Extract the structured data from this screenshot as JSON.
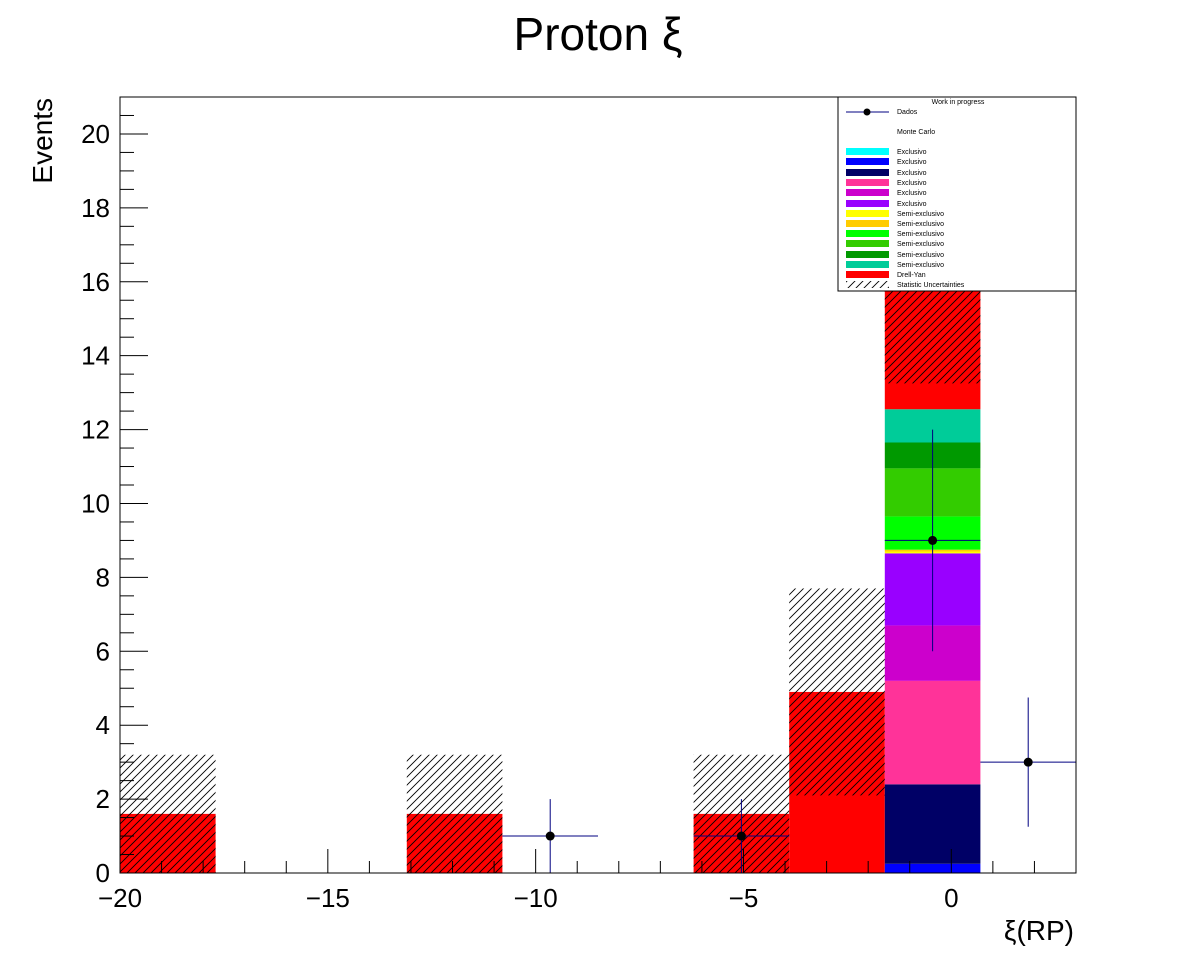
{
  "chart_data": {
    "type": "bar",
    "title": "Proton ξ",
    "xlabel": "ξ(RP)",
    "ylabel": "Events",
    "xlim": [
      -20,
      3
    ],
    "ylim": [
      0,
      21
    ],
    "x_ticks": [
      -20,
      -15,
      -10,
      -5,
      0
    ],
    "x_tick_labels": [
      "−20",
      "−15",
      "−10",
      "−5",
      "0"
    ],
    "y_ticks": [
      0,
      2,
      4,
      6,
      8,
      10,
      12,
      14,
      16,
      18,
      20
    ],
    "y_tick_labels": [
      "0",
      "2",
      "4",
      "6",
      "8",
      "10",
      "12",
      "14",
      "16",
      "18",
      "20"
    ],
    "stack_bins": [
      {
        "x0": -20,
        "x1": -17.7,
        "segments": [
          {
            "name": "Drell-Yan",
            "color": "#ff0000",
            "value": 1.6
          }
        ],
        "stat_uncertainty": 1.6
      },
      {
        "x0": -13.1,
        "x1": -10.8,
        "segments": [
          {
            "name": "Drell-Yan",
            "color": "#ff0000",
            "value": 1.6
          }
        ],
        "stat_uncertainty": 1.6
      },
      {
        "x0": -6.2,
        "x1": -3.9,
        "segments": [
          {
            "name": "Drell-Yan",
            "color": "#ff0000",
            "value": 1.6
          }
        ],
        "stat_uncertainty": 1.6
      },
      {
        "x0": -3.9,
        "x1": -1.6,
        "segments": [
          {
            "name": "Drell-Yan",
            "color": "#ff0000",
            "value": 4.9
          }
        ],
        "stat_uncertainty": 2.8
      },
      {
        "x0": -1.6,
        "x1": 0.7,
        "segments": [
          {
            "name": "Exclusivo",
            "color": "#0000ff",
            "value": 0.25
          },
          {
            "name": "Exclusivo",
            "color": "#000066",
            "value": 2.15
          },
          {
            "name": "Exclusivo",
            "color": "#ff3399",
            "value": 2.8
          },
          {
            "name": "Exclusivo",
            "color": "#cc00cc",
            "value": 1.5
          },
          {
            "name": "Exclusivo",
            "color": "#9900ff",
            "value": 1.95
          },
          {
            "name": "Semi-exclusivo",
            "color": "#ffff00",
            "value": 0.05
          },
          {
            "name": "Semi-exclusivo",
            "color": "#ffcc00",
            "value": 0.05
          },
          {
            "name": "Semi-exclusivo",
            "color": "#00ff00",
            "value": 0.9
          },
          {
            "name": "Semi-exclusivo",
            "color": "#33cc00",
            "value": 1.3
          },
          {
            "name": "Semi-exclusivo",
            "color": "#009900",
            "value": 0.7
          },
          {
            "name": "Semi-exclusivo",
            "color": "#00cc99",
            "value": 0.9
          },
          {
            "name": "Drell-Yan",
            "color": "#ff0000",
            "value": 3.2
          }
        ],
        "stat_uncertainty": 2.5
      }
    ],
    "data_points": [
      {
        "x": -9.65,
        "y": 1,
        "xerr": 1.15,
        "yerr": [
          1,
          1
        ]
      },
      {
        "x": -5.05,
        "y": 1,
        "xerr": 1.15,
        "yerr": [
          1,
          1
        ]
      },
      {
        "x": -0.45,
        "y": 9,
        "xerr": 1.15,
        "yerr": [
          3,
          3
        ]
      },
      {
        "x": 1.85,
        "y": 3,
        "xerr": 1.15,
        "yerr": [
          1.75,
          1.75
        ]
      }
    ],
    "legend": {
      "placement": "top-right",
      "header": "Work in progress",
      "entries": [
        {
          "label": "Dados",
          "kind": "marker",
          "color": "#000080"
        },
        {
          "label": "Monte Carlo",
          "kind": "text"
        },
        {
          "label": "Exclusivo",
          "kind": "fill",
          "color": "#00ffff"
        },
        {
          "label": "Exclusivo",
          "kind": "fill",
          "color": "#0000ff"
        },
        {
          "label": "Exclusivo",
          "kind": "fill",
          "color": "#000066"
        },
        {
          "label": "Exclusivo",
          "kind": "fill",
          "color": "#ff3399"
        },
        {
          "label": "Exclusivo",
          "kind": "fill",
          "color": "#cc00cc"
        },
        {
          "label": "Exclusivo",
          "kind": "fill",
          "color": "#9900ff"
        },
        {
          "label": "Semi-exclusivo",
          "kind": "fill",
          "color": "#ffff00"
        },
        {
          "label": "Semi-exclusivo",
          "kind": "fill",
          "color": "#ffcc00"
        },
        {
          "label": "Semi-exclusivo",
          "kind": "fill",
          "color": "#00ff00"
        },
        {
          "label": "Semi-exclusivo",
          "kind": "fill",
          "color": "#33cc00"
        },
        {
          "label": "Semi-exclusivo",
          "kind": "fill",
          "color": "#009900"
        },
        {
          "label": "Semi-exclusivo",
          "kind": "fill",
          "color": "#00cc99"
        },
        {
          "label": "Drell-Yan",
          "kind": "fill",
          "color": "#ff0000"
        },
        {
          "label": "Statistic Uncertainties",
          "kind": "hatch"
        }
      ]
    }
  }
}
